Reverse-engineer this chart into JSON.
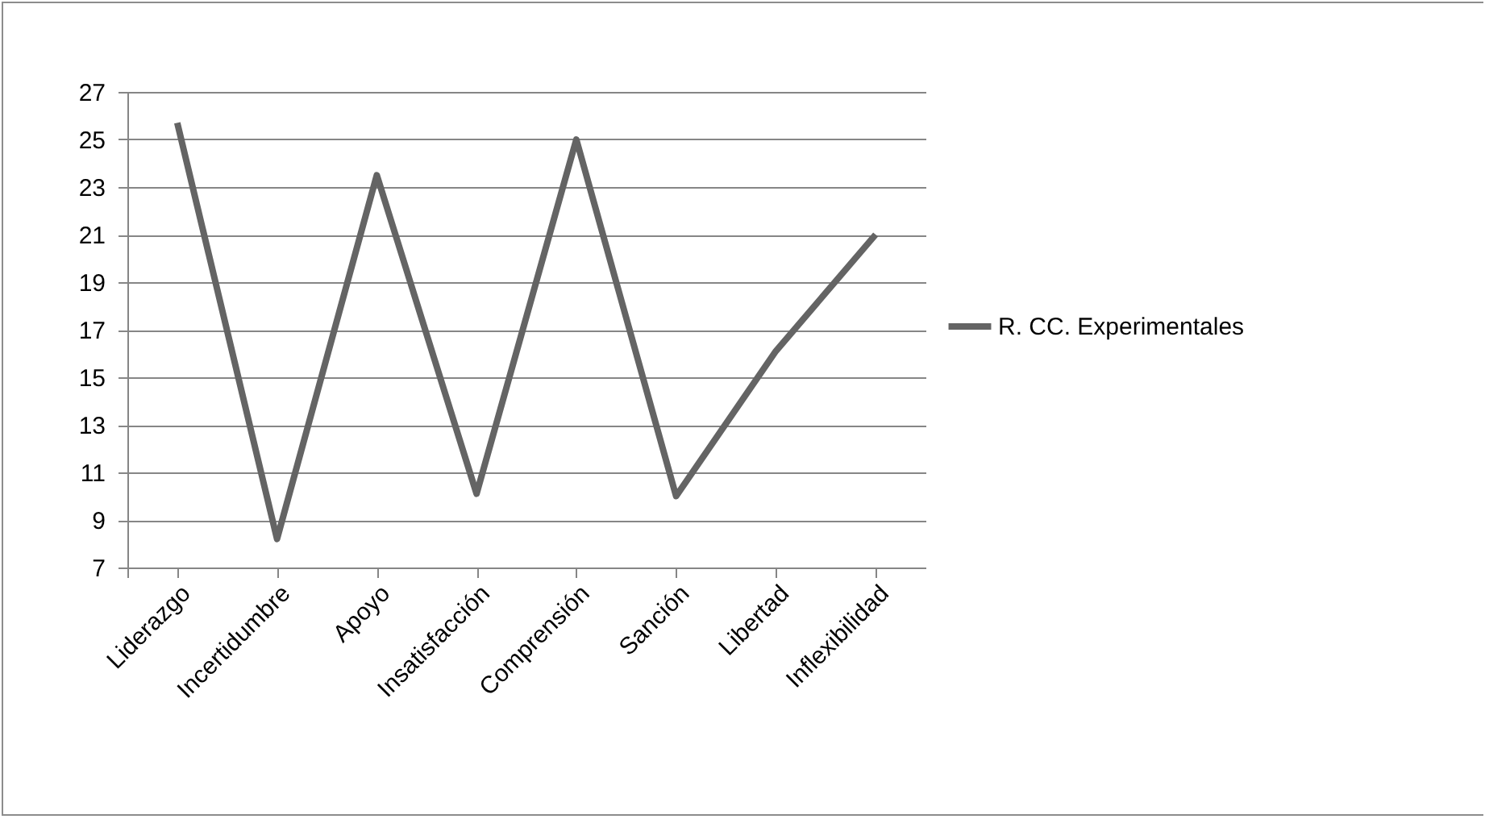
{
  "chart_data": {
    "type": "line",
    "categories": [
      "Liderazgo",
      "Incertidumbre",
      "Apoyo",
      "Insatisfacción",
      "Comprensión",
      "Sanción",
      "Libertad",
      "Inflexibilidad"
    ],
    "series": [
      {
        "name": "R. CC. Experimentales",
        "color": "#646464",
        "values": [
          25.7,
          8.2,
          23.5,
          10.1,
          25.0,
          10.0,
          16.1,
          21.0
        ]
      }
    ],
    "ylim": [
      7,
      27
    ],
    "yticks": [
      7,
      9,
      11,
      13,
      15,
      17,
      19,
      21,
      23,
      25,
      27
    ],
    "grid": "y",
    "legend": "right",
    "marker": "none",
    "line_style": "solid"
  }
}
